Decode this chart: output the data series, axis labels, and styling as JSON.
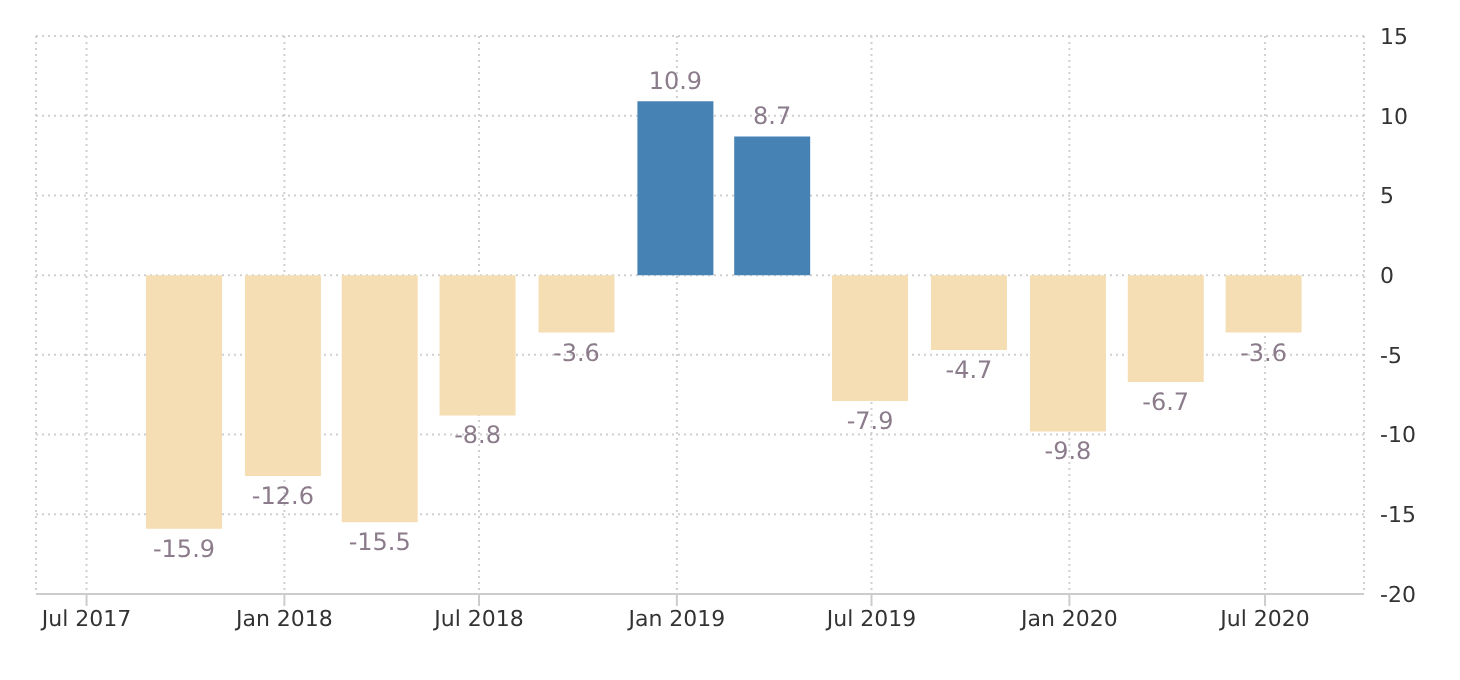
{
  "chart_data": {
    "type": "bar",
    "x": [
      "2017-09-30",
      "2017-12-31",
      "2018-03-31",
      "2018-06-30",
      "2018-09-30",
      "2018-12-31",
      "2019-03-31",
      "2019-06-30",
      "2019-09-30",
      "2019-12-31",
      "2020-03-31",
      "2020-06-30"
    ],
    "values": [
      -15.9,
      -12.6,
      -15.5,
      -8.8,
      -3.6,
      10.9,
      8.7,
      -7.9,
      -4.7,
      -9.8,
      -6.7,
      -3.6
    ],
    "colors": [
      "#f5deb3",
      "#f5deb3",
      "#f5deb3",
      "#f5deb3",
      "#f5deb3",
      "#4682b4",
      "#4682b4",
      "#f5deb3",
      "#f5deb3",
      "#f5deb3",
      "#f5deb3",
      "#f5deb3"
    ],
    "data_labels": true,
    "xlim": [
      "2017-05-15",
      "2020-10-01"
    ],
    "xticks": [
      {
        "value": "2017-07",
        "label": "Jul 2017"
      },
      {
        "value": "2018-01",
        "label": "Jan 2018"
      },
      {
        "value": "2018-07",
        "label": "Jul 2018"
      },
      {
        "value": "2019-01",
        "label": "Jan 2019"
      },
      {
        "value": "2019-07",
        "label": "Jul 2019"
      },
      {
        "value": "2020-01",
        "label": "Jan 2020"
      },
      {
        "value": "2020-07",
        "label": "Jul 2020"
      }
    ],
    "ylim": [
      -20,
      15
    ],
    "yticks": [
      -20,
      -15,
      -10,
      -5,
      0,
      5,
      10,
      15
    ],
    "grid": true
  }
}
